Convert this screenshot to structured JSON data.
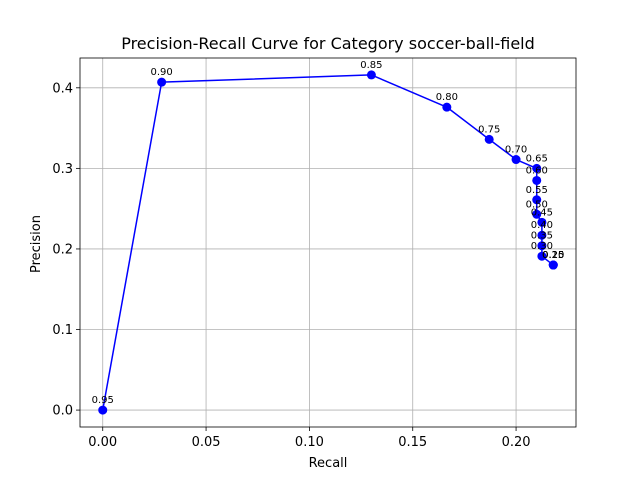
{
  "chart_data": {
    "type": "line",
    "title": "Precision-Recall Curve for Category soccer-ball-field",
    "xlabel": "Recall",
    "ylabel": "Precision",
    "xlim": [
      -0.011,
      0.229
    ],
    "ylim": [
      -0.021,
      0.437
    ],
    "xticks": [
      "0.00",
      "0.05",
      "0.10",
      "0.15",
      "0.20"
    ],
    "yticks": [
      "0.0",
      "0.1",
      "0.2",
      "0.3",
      "0.4"
    ],
    "grid": true,
    "color": "#0000ff",
    "series": [
      {
        "x": [
          0.0,
          0.0285,
          0.13,
          0.1665,
          0.187,
          0.2,
          0.21,
          0.21,
          0.21,
          0.21,
          0.2125,
          0.2125,
          0.2125,
          0.2125,
          0.218,
          0.218,
          0.218
        ],
        "y": [
          0.0,
          0.407,
          0.416,
          0.376,
          0.336,
          0.311,
          0.3,
          0.285,
          0.261,
          0.243,
          0.233,
          0.217,
          0.204,
          0.191,
          0.18,
          0.18,
          0.18
        ],
        "labels": [
          "0.95",
          "0.90",
          "0.85",
          "0.80",
          "0.75",
          "0.70",
          "0.65",
          "0.60",
          "0.55",
          "0.50",
          "0.45",
          "0.40",
          "0.35",
          "0.30",
          "0.25",
          "0.20",
          "0.15"
        ]
      }
    ]
  }
}
